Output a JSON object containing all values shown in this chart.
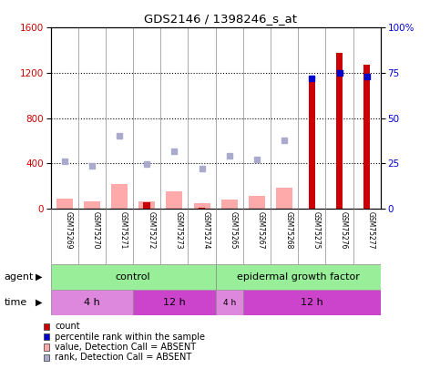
{
  "title": "GDS2146 / 1398246_s_at",
  "samples": [
    "GSM75269",
    "GSM75270",
    "GSM75271",
    "GSM75272",
    "GSM75273",
    "GSM75274",
    "GSM75265",
    "GSM75267",
    "GSM75268",
    "GSM75275",
    "GSM75276",
    "GSM75277"
  ],
  "count_values": [
    0,
    0,
    0,
    55,
    0,
    10,
    0,
    0,
    0,
    1150,
    1380,
    1270
  ],
  "percentile_rank": [
    null,
    null,
    null,
    null,
    null,
    null,
    null,
    null,
    null,
    72,
    75,
    73
  ],
  "absent_value": [
    90,
    65,
    220,
    60,
    150,
    50,
    80,
    115,
    185,
    0,
    0,
    0
  ],
  "absent_rank": [
    420,
    380,
    640,
    390,
    510,
    350,
    470,
    430,
    600,
    0,
    0,
    0
  ],
  "ylim_left": [
    0,
    1600
  ],
  "ylim_right": [
    0,
    100
  ],
  "yticks_left": [
    0,
    400,
    800,
    1200,
    1600
  ],
  "yticks_right": [
    0,
    25,
    50,
    75,
    100
  ],
  "ytick_labels_right": [
    "0",
    "25",
    "50",
    "75",
    "100%"
  ],
  "agent_control_label": "control",
  "agent_egf_label": "epidermal growth factor",
  "time_4h_label": "4 h",
  "time_12h_label": "12 h",
  "color_count": "#cc0000",
  "color_percentile": "#0000cc",
  "color_absent_value": "#ffaaaa",
  "color_absent_rank": "#aaaacc",
  "color_agent_green": "#99ee99",
  "color_time_light": "#dd88dd",
  "color_time_dark": "#cc44cc",
  "bg_label": "#cccccc",
  "figsize": [
    4.83,
    4.05
  ],
  "dpi": 100,
  "n_samples": 12,
  "n_ctrl": 6,
  "n_egf": 6,
  "n_ctrl_4h": 3,
  "n_ctrl_12h": 3,
  "n_egf_4h": 1,
  "n_egf_12h": 5
}
